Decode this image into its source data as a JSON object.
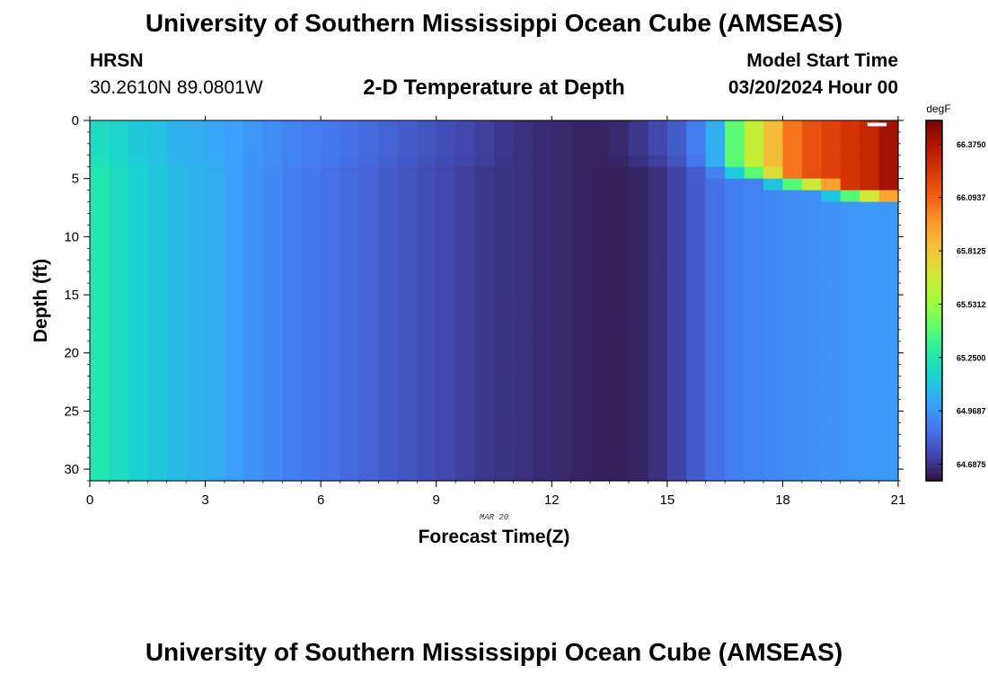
{
  "header": {
    "title": "University of Southern Mississippi Ocean Cube (AMSEAS)",
    "station": "HRSN",
    "coords": "30.2610N  89.0801W",
    "subtitle": "2-D Temperature at Depth",
    "model_start_label": "Model Start Time",
    "model_start_value": "03/20/2024 Hour 00"
  },
  "footer": {
    "title": "University of Southern Mississippi Ocean Cube (AMSEAS)"
  },
  "chart_data": {
    "type": "heatmap",
    "xlabel": "Forecast Time(Z)",
    "ylabel": "Depth (ft)",
    "date_label": "MAR 20",
    "xlim": [
      0,
      21
    ],
    "ylim": [
      31,
      0
    ],
    "xticks": [
      0,
      3,
      6,
      9,
      12,
      15,
      18,
      21
    ],
    "yticks": [
      0,
      5,
      10,
      15,
      20,
      25,
      30
    ],
    "colorbar": {
      "unit": "degF",
      "min": 64.6,
      "max": 66.5,
      "tick_values": [
        64.6875,
        64.96875,
        65.25,
        65.53125,
        65.8125,
        66.09375,
        66.375
      ],
      "tick_labels": [
        "64.6875",
        "64.9687",
        "65.2500",
        "65.5312",
        "65.8125",
        "66.0937",
        "66.3750"
      ],
      "colors": [
        "#30123b",
        "#4145ab",
        "#4675ed",
        "#39a2fc",
        "#1bcfd4",
        "#24eca6",
        "#61fc6c",
        "#a4fc3b",
        "#d1e834",
        "#f3c63a",
        "#fe9b2d",
        "#f36315",
        "#d93806",
        "#b11901",
        "#7a0402"
      ]
    },
    "time_steps": [
      0.25,
      0.75,
      1.25,
      1.75,
      2.25,
      2.75,
      3.25,
      3.75,
      4.25,
      4.75,
      5.25,
      5.75,
      6.25,
      6.75,
      7.25,
      7.75,
      8.25,
      8.75,
      9.25,
      9.75,
      10.25,
      10.75,
      11.25,
      11.75,
      12.25,
      12.75,
      13.25,
      13.75,
      14.25,
      14.75,
      15.25,
      15.75,
      16.25,
      16.75,
      17.25,
      17.75,
      18.25,
      18.75,
      19.25,
      19.75,
      20.25,
      20.75
    ],
    "surface_values_degF": [
      65.2,
      65.17,
      65.12,
      65.1,
      65.06,
      65.04,
      65.02,
      65.0,
      64.97,
      64.94,
      64.92,
      64.9,
      64.88,
      64.86,
      64.84,
      64.82,
      64.8,
      64.78,
      64.76,
      64.74,
      64.72,
      64.7,
      64.68,
      64.67,
      64.66,
      64.65,
      64.65,
      64.66,
      64.7,
      64.74,
      64.8,
      64.9,
      65.05,
      65.4,
      65.65,
      65.85,
      66.05,
      66.15,
      66.2,
      66.25,
      66.3,
      66.4
    ],
    "deep_values_degF": [
      65.25,
      65.2,
      65.15,
      65.12,
      65.08,
      65.06,
      65.04,
      65.0,
      64.96,
      64.93,
      64.9,
      64.88,
      64.86,
      64.84,
      64.82,
      64.8,
      64.78,
      64.76,
      64.74,
      64.72,
      64.7,
      64.69,
      64.68,
      64.67,
      64.66,
      64.65,
      64.64,
      64.64,
      64.65,
      64.68,
      64.73,
      64.8,
      64.86,
      64.9,
      64.92,
      64.93,
      64.94,
      64.95,
      64.96,
      64.97,
      64.98,
      64.98
    ]
  }
}
